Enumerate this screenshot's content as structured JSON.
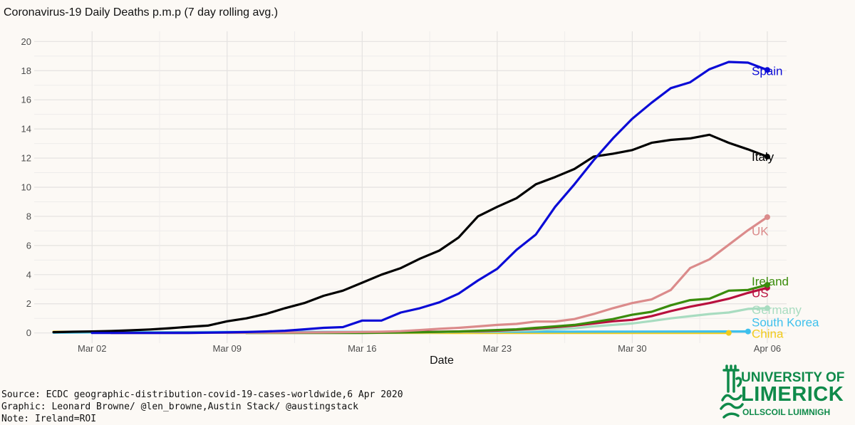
{
  "chart_data": {
    "type": "line",
    "title": "Coronavirus-19 Daily Deaths p.m.p (7 day rolling avg.)",
    "xlabel": "Date",
    "ylabel": "",
    "x_ticks": [
      "Mar 02",
      "Mar 09",
      "Mar 16",
      "Mar 23",
      "Mar 30",
      "Apr 06"
    ],
    "x_tick_dates": [
      "2020-03-02",
      "2020-03-09",
      "2020-03-16",
      "2020-03-23",
      "2020-03-30",
      "2020-04-06"
    ],
    "y_ticks": [
      0,
      2,
      4,
      6,
      8,
      10,
      12,
      14,
      16,
      18,
      20
    ],
    "xlim": [
      "2020-02-28",
      "2020-04-07"
    ],
    "ylim": [
      -0.7,
      20.7
    ],
    "grid": true,
    "legend": "direct labels at line ends (right)",
    "series": [
      {
        "name": "Spain",
        "color": "#0b0bd6",
        "points": [
          [
            "2020-03-02",
            0
          ],
          [
            "2020-03-03",
            0
          ],
          [
            "2020-03-04",
            0
          ],
          [
            "2020-03-05",
            0
          ],
          [
            "2020-03-06",
            0
          ],
          [
            "2020-03-07",
            0
          ],
          [
            "2020-03-08",
            0.02
          ],
          [
            "2020-03-09",
            0.04
          ],
          [
            "2020-03-10",
            0.06
          ],
          [
            "2020-03-11",
            0.1
          ],
          [
            "2020-03-12",
            0.15
          ],
          [
            "2020-03-13",
            0.25
          ],
          [
            "2020-03-14",
            0.35
          ],
          [
            "2020-03-15",
            0.4
          ],
          [
            "2020-03-16",
            0.85
          ],
          [
            "2020-03-17",
            0.85
          ],
          [
            "2020-03-18",
            1.4
          ],
          [
            "2020-03-19",
            1.7
          ],
          [
            "2020-03-20",
            2.1
          ],
          [
            "2020-03-21",
            2.7
          ],
          [
            "2020-03-22",
            3.6
          ],
          [
            "2020-03-23",
            4.4
          ],
          [
            "2020-03-24",
            5.7
          ],
          [
            "2020-03-25",
            6.75
          ],
          [
            "2020-03-26",
            8.65
          ],
          [
            "2020-03-27",
            10.2
          ],
          [
            "2020-03-28",
            11.85
          ],
          [
            "2020-03-29",
            13.35
          ],
          [
            "2020-03-30",
            14.7
          ],
          [
            "2020-03-31",
            15.8
          ],
          [
            "2020-04-01",
            16.8
          ],
          [
            "2020-04-02",
            17.2
          ],
          [
            "2020-04-03",
            18.1
          ],
          [
            "2020-04-04",
            18.6
          ],
          [
            "2020-04-05",
            18.55
          ],
          [
            "2020-04-06",
            18.05
          ]
        ]
      },
      {
        "name": "Italy",
        "color": "#000000",
        "points": [
          [
            "2020-02-29",
            0.05
          ],
          [
            "2020-03-01",
            0.08
          ],
          [
            "2020-03-02",
            0.1
          ],
          [
            "2020-03-03",
            0.13
          ],
          [
            "2020-03-04",
            0.18
          ],
          [
            "2020-03-05",
            0.24
          ],
          [
            "2020-03-06",
            0.32
          ],
          [
            "2020-03-07",
            0.42
          ],
          [
            "2020-03-08",
            0.5
          ],
          [
            "2020-03-09",
            0.8
          ],
          [
            "2020-03-10",
            1.0
          ],
          [
            "2020-03-11",
            1.3
          ],
          [
            "2020-03-12",
            1.7
          ],
          [
            "2020-03-13",
            2.05
          ],
          [
            "2020-03-14",
            2.55
          ],
          [
            "2020-03-15",
            2.9
          ],
          [
            "2020-03-16",
            3.45
          ],
          [
            "2020-03-17",
            4.0
          ],
          [
            "2020-03-18",
            4.45
          ],
          [
            "2020-03-19",
            5.1
          ],
          [
            "2020-03-20",
            5.65
          ],
          [
            "2020-03-21",
            6.55
          ],
          [
            "2020-03-22",
            8.0
          ],
          [
            "2020-03-23",
            8.65
          ],
          [
            "2020-03-24",
            9.25
          ],
          [
            "2020-03-25",
            10.2
          ],
          [
            "2020-03-26",
            10.7
          ],
          [
            "2020-03-27",
            11.25
          ],
          [
            "2020-03-28",
            12.1
          ],
          [
            "2020-03-29",
            12.3
          ],
          [
            "2020-03-30",
            12.55
          ],
          [
            "2020-03-31",
            13.05
          ],
          [
            "2020-04-01",
            13.25
          ],
          [
            "2020-04-02",
            13.35
          ],
          [
            "2020-04-03",
            13.6
          ],
          [
            "2020-04-04",
            13.05
          ],
          [
            "2020-04-05",
            12.6
          ],
          [
            "2020-04-06",
            12.1
          ]
        ]
      },
      {
        "name": "UK",
        "color": "#db8b8b",
        "points": [
          [
            "2020-03-03",
            0
          ],
          [
            "2020-03-10",
            0.02
          ],
          [
            "2020-03-14",
            0.04
          ],
          [
            "2020-03-17",
            0.08
          ],
          [
            "2020-03-18",
            0.12
          ],
          [
            "2020-03-19",
            0.2
          ],
          [
            "2020-03-20",
            0.28
          ],
          [
            "2020-03-21",
            0.35
          ],
          [
            "2020-03-22",
            0.45
          ],
          [
            "2020-03-23",
            0.55
          ],
          [
            "2020-03-24",
            0.62
          ],
          [
            "2020-03-25",
            0.78
          ],
          [
            "2020-03-26",
            0.78
          ],
          [
            "2020-03-27",
            0.95
          ],
          [
            "2020-03-28",
            1.3
          ],
          [
            "2020-03-29",
            1.7
          ],
          [
            "2020-03-30",
            2.05
          ],
          [
            "2020-03-31",
            2.3
          ],
          [
            "2020-04-01",
            2.95
          ],
          [
            "2020-04-02",
            4.45
          ],
          [
            "2020-04-03",
            5.05
          ],
          [
            "2020-04-04",
            6.05
          ],
          [
            "2020-04-05",
            7.05
          ],
          [
            "2020-04-06",
            7.95
          ]
        ]
      },
      {
        "name": "Ireland",
        "color": "#3a8c0c",
        "points": [
          [
            "2020-03-10",
            0
          ],
          [
            "2020-03-16",
            0
          ],
          [
            "2020-03-19",
            0.05
          ],
          [
            "2020-03-21",
            0.1
          ],
          [
            "2020-03-22",
            0.15
          ],
          [
            "2020-03-23",
            0.2
          ],
          [
            "2020-03-24",
            0.25
          ],
          [
            "2020-03-25",
            0.35
          ],
          [
            "2020-03-26",
            0.45
          ],
          [
            "2020-03-27",
            0.55
          ],
          [
            "2020-03-28",
            0.75
          ],
          [
            "2020-03-29",
            0.95
          ],
          [
            "2020-03-30",
            1.25
          ],
          [
            "2020-03-31",
            1.45
          ],
          [
            "2020-04-01",
            1.9
          ],
          [
            "2020-04-02",
            2.25
          ],
          [
            "2020-04-03",
            2.35
          ],
          [
            "2020-04-04",
            2.9
          ],
          [
            "2020-04-05",
            2.95
          ],
          [
            "2020-04-06",
            3.3
          ]
        ]
      },
      {
        "name": "US",
        "color": "#b8103e",
        "points": [
          [
            "2020-03-03",
            0
          ],
          [
            "2020-03-10",
            0.02
          ],
          [
            "2020-03-16",
            0.04
          ],
          [
            "2020-03-20",
            0.08
          ],
          [
            "2020-03-22",
            0.12
          ],
          [
            "2020-03-23",
            0.16
          ],
          [
            "2020-03-24",
            0.22
          ],
          [
            "2020-03-25",
            0.3
          ],
          [
            "2020-03-26",
            0.4
          ],
          [
            "2020-03-27",
            0.5
          ],
          [
            "2020-03-28",
            0.65
          ],
          [
            "2020-03-29",
            0.8
          ],
          [
            "2020-03-30",
            0.9
          ],
          [
            "2020-03-31",
            1.15
          ],
          [
            "2020-04-01",
            1.5
          ],
          [
            "2020-04-02",
            1.8
          ],
          [
            "2020-04-03",
            2.05
          ],
          [
            "2020-04-04",
            2.35
          ],
          [
            "2020-04-05",
            2.75
          ],
          [
            "2020-04-06",
            3.1
          ]
        ]
      },
      {
        "name": "Germany",
        "color": "#a8dcc0",
        "points": [
          [
            "2020-03-09",
            0
          ],
          [
            "2020-03-16",
            0
          ],
          [
            "2020-03-20",
            0.05
          ],
          [
            "2020-03-23",
            0.12
          ],
          [
            "2020-03-25",
            0.2
          ],
          [
            "2020-03-27",
            0.32
          ],
          [
            "2020-03-28",
            0.45
          ],
          [
            "2020-03-29",
            0.55
          ],
          [
            "2020-03-30",
            0.65
          ],
          [
            "2020-03-31",
            0.82
          ],
          [
            "2020-04-01",
            1.0
          ],
          [
            "2020-04-02",
            1.15
          ],
          [
            "2020-04-03",
            1.3
          ],
          [
            "2020-04-04",
            1.4
          ],
          [
            "2020-04-05",
            1.65
          ],
          [
            "2020-04-06",
            1.7
          ]
        ]
      },
      {
        "name": "South Korea",
        "color": "#3ec0ec",
        "points": [
          [
            "2020-02-29",
            0.02
          ],
          [
            "2020-03-02",
            0.04
          ],
          [
            "2020-03-09",
            0.06
          ],
          [
            "2020-03-16",
            0.07
          ],
          [
            "2020-03-23",
            0.08
          ],
          [
            "2020-03-30",
            0.09
          ],
          [
            "2020-04-05",
            0.1
          ]
        ]
      },
      {
        "name": "China",
        "color": "#f2cb1c",
        "points": [
          [
            "2020-02-29",
            0.08
          ],
          [
            "2020-03-02",
            0.05
          ],
          [
            "2020-03-09",
            0.03
          ],
          [
            "2020-03-16",
            0.01
          ],
          [
            "2020-03-23",
            0.0
          ],
          [
            "2020-03-30",
            0.0
          ],
          [
            "2020-04-04",
            0.0
          ]
        ]
      }
    ]
  },
  "footer": {
    "line1": "Source: ECDC geographic-distribution-covid-19-cases-worldwide,6 Apr 2020",
    "line2": "Graphic: Leonard Browne/ @len_browne,Austin Stack/ @austingstack",
    "line3": "Note: Ireland=ROI"
  },
  "logo": {
    "line1": "UNIVERSITY OF",
    "line2": "LIMERICK",
    "line3": "OLLSCOIL LUIMNIGH",
    "color": "#0f8a4a"
  }
}
